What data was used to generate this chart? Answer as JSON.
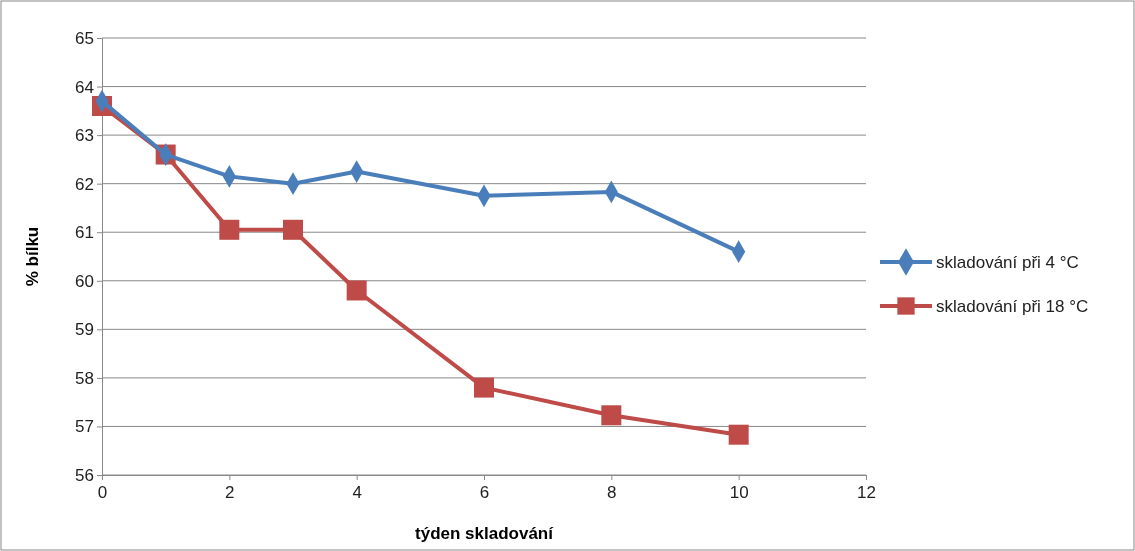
{
  "chart_data": {
    "type": "line",
    "xlabel": "týden skladování",
    "ylabel": "% bílku",
    "xlim": [
      0,
      12
    ],
    "xticks": [
      0,
      2,
      4,
      6,
      8,
      10,
      12
    ],
    "ylim": [
      56,
      65
    ],
    "yticks": [
      56,
      57,
      58,
      59,
      60,
      61,
      62,
      63,
      64,
      65
    ],
    "grid": "y",
    "legend": "right",
    "series": [
      {
        "name": "skladování při 4 °C",
        "color": "#4a7ebb",
        "marker": "diamond",
        "x": [
          0,
          1,
          2,
          3,
          4,
          6,
          8,
          10
        ],
        "values": [
          63.7,
          62.6,
          62.15,
          62.0,
          62.25,
          61.75,
          61.83,
          60.6
        ]
      },
      {
        "name": "skladování při 18 °C",
        "color": "#be4b48",
        "marker": "square",
        "x": [
          0,
          1,
          2,
          3,
          4,
          6,
          8,
          10
        ],
        "values": [
          63.6,
          62.6,
          61.05,
          61.05,
          59.8,
          57.8,
          57.23,
          56.83
        ]
      }
    ]
  }
}
